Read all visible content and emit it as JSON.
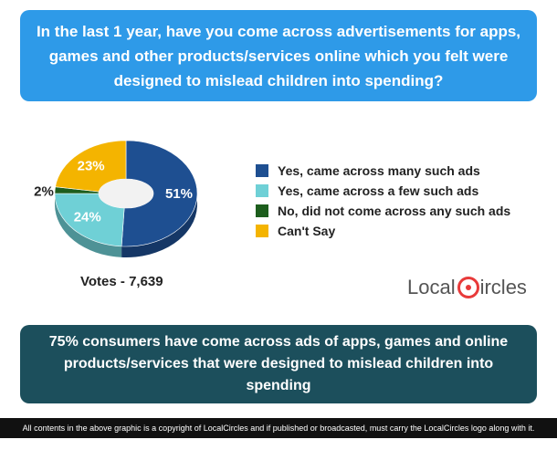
{
  "question": "In the last 1 year, have you come across advertisements for apps, games and other products/services online which you felt were designed to mislead children into spending?",
  "chart_data": {
    "type": "pie",
    "categories": [
      "Yes, came across many such ads",
      "Yes, came across a few such ads",
      "No, did not come across any such ads",
      "Can't Say"
    ],
    "values": [
      51,
      24,
      2,
      23
    ],
    "value_labels": [
      "51%",
      "24%",
      "2%",
      "23%"
    ],
    "colors": [
      "#1e4f91",
      "#6fd0d6",
      "#1d5e1d",
      "#f4b400"
    ],
    "legend_position": "right",
    "donut": true
  },
  "votes": "Votes - 7,639",
  "logo": {
    "left": "Local",
    "right": "ircles"
  },
  "summary": "75% consumers have come across ads of apps, games and online products/services that were designed to mislead children into spending",
  "footer": "All contents in the above graphic is a copyright of LocalCircles and if published or broadcasted, must carry the LocalCircles logo along with it."
}
